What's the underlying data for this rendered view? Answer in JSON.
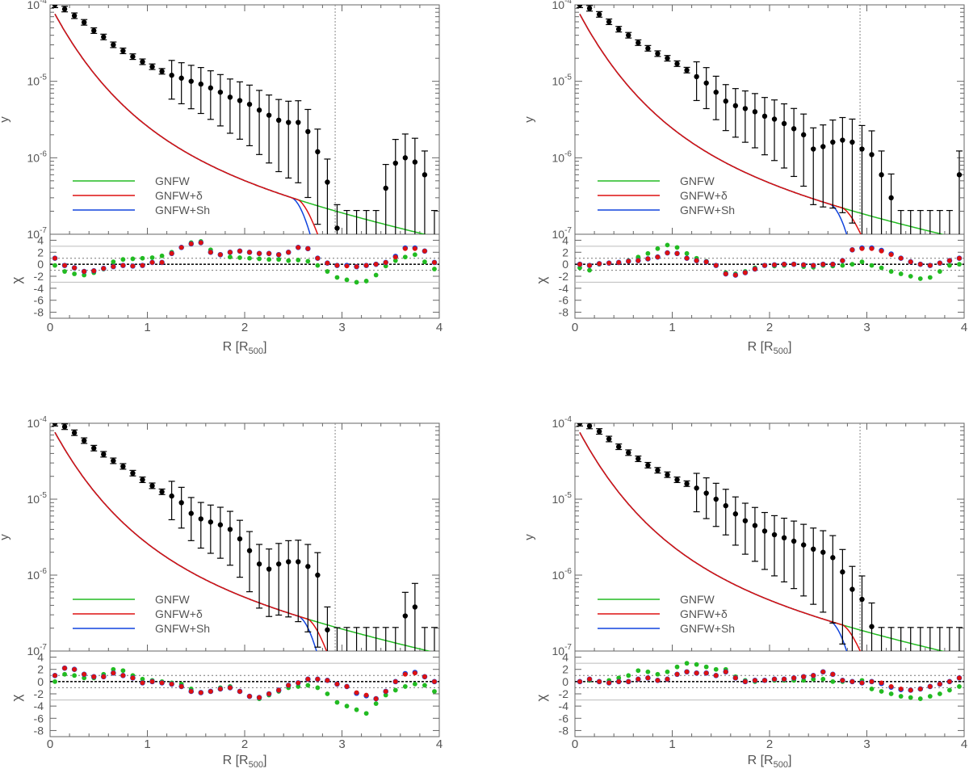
{
  "legend": {
    "position": "lower-left",
    "entries": [
      {
        "label": "GNFW",
        "color": "#22bb22"
      },
      {
        "label": "GNFW+δ",
        "color": "#dd1111"
      },
      {
        "label": "GNFW+Sh",
        "color": "#1144dd"
      }
    ]
  },
  "axes": {
    "xlabel_main": "R [R",
    "xlabel_sub": "500",
    "xlabel_close": "]",
    "ylabel_top": "y",
    "ylabel_bottom": "χ",
    "xlim": [
      0,
      4
    ],
    "xticks": [
      "0",
      "1",
      "2",
      "3",
      "4"
    ],
    "ylim_top": [
      1e-07,
      0.0001
    ],
    "log_y_top": true,
    "yticks_top": [
      {
        "base": "10",
        "exp": "-4"
      },
      {
        "base": "10",
        "exp": "-5"
      },
      {
        "base": "10",
        "exp": "-6"
      },
      {
        "base": "10",
        "exp": "-7"
      }
    ],
    "ylim_bottom": [
      -9,
      5
    ],
    "yticks_bottom": [
      "4",
      "2",
      "0",
      "-2",
      "-4",
      "-6",
      "-8"
    ],
    "vline_x": 2.93,
    "residual_reference_lines": [
      3,
      1,
      0,
      -1,
      -3
    ]
  },
  "chart_data": [
    {
      "type": "line",
      "panel": "top-left",
      "data_points": {
        "x": [
          0.05,
          0.15,
          0.25,
          0.35,
          0.45,
          0.55,
          0.65,
          0.75,
          0.85,
          0.95,
          1.05,
          1.15,
          1.25,
          1.35,
          1.45,
          1.55,
          1.65,
          1.75,
          1.85,
          1.95,
          2.05,
          2.15,
          2.25,
          2.35,
          2.45,
          2.55,
          2.65,
          2.75,
          2.85,
          2.95,
          3.05,
          3.15,
          3.25,
          3.35,
          3.45,
          3.55,
          3.65,
          3.75,
          3.85,
          3.95
        ],
        "y": [
          0.0001,
          8.8e-05,
          7.2e-05,
          5.9e-05,
          4.6e-05,
          3.8e-05,
          3e-05,
          2.5e-05,
          2.1e-05,
          1.8e-05,
          1.55e-05,
          1.35e-05,
          1.2e-05,
          1.1e-05,
          1e-05,
          9.2e-06,
          8.2e-06,
          7.2e-06,
          6.2e-06,
          5.6e-06,
          5e-06,
          4.2e-06,
          3.6e-06,
          3.1e-06,
          2.9e-06,
          2.9e-06,
          2.2e-06,
          1.2e-06,
          4.8e-07,
          1.2e-07,
          1e-07,
          1e-07,
          1e-07,
          1e-07,
          4e-07,
          8.5e-07,
          1e-06,
          8.8e-07,
          6e-07,
          1e-07
        ]
      },
      "series": [
        {
          "name": "GNFW",
          "fit": "gnfw",
          "k1": 1.95,
          "k2": 0.8
        },
        {
          "name": "GNFW+δ",
          "fit": "delta",
          "k1": 1.95,
          "k2": 0.8,
          "cut": 2.55,
          "cutw": 0.22,
          "cutp": 1.6
        },
        {
          "name": "GNFW+Sh",
          "fit": "shock",
          "k1": 1.95,
          "k2": 0.8,
          "cut": 2.48,
          "cutw": 0.2,
          "cutp": 1.9
        }
      ],
      "residuals": {
        "green": [
          -0.2,
          -1.2,
          -1.6,
          -1.8,
          -1.4,
          -0.8,
          0.4,
          0.8,
          0.9,
          1.0,
          1.1,
          1.4,
          2.0,
          2.8,
          3.6,
          3.8,
          2.4,
          1.6,
          1.2,
          1.1,
          1.0,
          0.9,
          0.8,
          0.8,
          0.6,
          0.7,
          0.5,
          -0.2,
          -1.2,
          -2.2,
          -2.6,
          -3.0,
          -2.8,
          -1.8,
          -0.3,
          0.6,
          1.2,
          1.6,
          0.4,
          -0.8
        ],
        "red": [
          1.0,
          -0.2,
          -0.6,
          -1.2,
          -1.1,
          -0.7,
          -0.4,
          -0.2,
          -0.3,
          -0.2,
          0.3,
          0.3,
          1.8,
          2.8,
          3.4,
          3.6,
          2.0,
          1.6,
          2.0,
          2.2,
          2.0,
          1.8,
          1.8,
          1.6,
          2.0,
          2.8,
          2.6,
          1.0,
          0.2,
          -0.2,
          -0.3,
          -0.4,
          -0.2,
          0.0,
          0.3,
          1.2,
          2.6,
          2.6,
          2.2,
          0.3
        ],
        "blue": [
          1.0,
          -0.2,
          -0.6,
          -1.2,
          -1.1,
          -0.7,
          -0.4,
          -0.2,
          -0.3,
          -0.2,
          0.3,
          0.3,
          1.8,
          2.8,
          3.4,
          3.6,
          2.0,
          1.6,
          2.0,
          2.2,
          2.0,
          1.8,
          1.8,
          1.6,
          2.0,
          2.8,
          2.6,
          1.0,
          0.2,
          -0.2,
          -0.2,
          -0.4,
          -0.2,
          0.0,
          0.3,
          1.3,
          2.7,
          2.7,
          2.2,
          0.3
        ]
      }
    },
    {
      "type": "line",
      "panel": "top-right",
      "data_points": {
        "x": [
          0.05,
          0.15,
          0.25,
          0.35,
          0.45,
          0.55,
          0.65,
          0.75,
          0.85,
          0.95,
          1.05,
          1.15,
          1.25,
          1.35,
          1.45,
          1.55,
          1.65,
          1.75,
          1.85,
          1.95,
          2.05,
          2.15,
          2.25,
          2.35,
          2.45,
          2.55,
          2.65,
          2.75,
          2.85,
          2.95,
          3.05,
          3.15,
          3.25,
          3.35,
          3.45,
          3.55,
          3.65,
          3.75,
          3.85,
          3.95
        ],
        "y": [
          0.0001,
          9e-05,
          7.5e-05,
          6e-05,
          4.8e-05,
          4e-05,
          3.2e-05,
          2.7e-05,
          2.3e-05,
          2e-05,
          1.7e-05,
          1.4e-05,
          1.15e-05,
          9.5e-06,
          7.2e-06,
          5.5e-06,
          4.8e-06,
          4.4e-06,
          4e-06,
          3.5e-06,
          3.2e-06,
          2.8e-06,
          2.4e-06,
          2e-06,
          1.3e-06,
          1.4e-06,
          1.6e-06,
          1.7e-06,
          1.6e-06,
          1.3e-06,
          1.1e-06,
          6e-07,
          3e-07,
          1e-07,
          1e-07,
          1e-07,
          1e-07,
          1e-07,
          1e-07,
          6e-07
        ]
      },
      "series": [
        {
          "name": "GNFW",
          "fit": "gnfw",
          "k1": 2.0,
          "k2": 0.78
        },
        {
          "name": "GNFW+δ",
          "fit": "delta",
          "k1": 2.0,
          "k2": 0.78,
          "cut": 2.75,
          "cutw": 0.25,
          "cutp": 1.6
        },
        {
          "name": "GNFW+Sh",
          "fit": "shock",
          "k1": 2.0,
          "k2": 0.78,
          "cut": 2.62,
          "cutw": 0.2,
          "cutp": 1.9
        }
      ],
      "residuals": {
        "green": [
          -0.6,
          -1.0,
          0.0,
          0.2,
          0.3,
          0.6,
          1.2,
          1.8,
          2.6,
          3.2,
          2.8,
          1.8,
          1.0,
          0.5,
          -0.2,
          -1.4,
          -1.6,
          -1.2,
          -0.6,
          -0.2,
          -0.3,
          -0.2,
          0.0,
          -0.4,
          -0.5,
          -0.2,
          -0.3,
          -0.2,
          0.0,
          0.4,
          -0.2,
          -0.6,
          -1.2,
          -1.6,
          -2.0,
          -2.4,
          -2.2,
          -1.2,
          -0.2,
          0.0
        ],
        "red": [
          0.0,
          -0.2,
          0.1,
          0.2,
          0.3,
          0.5,
          0.6,
          0.9,
          1.2,
          1.9,
          1.8,
          1.0,
          0.6,
          0.4,
          -0.2,
          -1.6,
          -1.8,
          -1.4,
          -0.8,
          -0.2,
          -0.1,
          0.0,
          0.0,
          -0.1,
          -0.2,
          0.0,
          0.0,
          0.6,
          2.4,
          2.6,
          2.6,
          2.2,
          1.6,
          1.0,
          0.4,
          0.0,
          -0.2,
          0.2,
          0.6,
          1.0
        ],
        "blue": [
          0.0,
          -0.2,
          0.1,
          0.2,
          0.3,
          0.5,
          0.6,
          0.9,
          1.2,
          1.9,
          1.8,
          1.0,
          0.6,
          0.4,
          -0.2,
          -1.6,
          -1.8,
          -1.4,
          -0.8,
          -0.2,
          -0.1,
          0.0,
          0.0,
          -0.1,
          -0.2,
          0.0,
          0.0,
          0.6,
          2.4,
          2.7,
          2.7,
          2.3,
          1.7,
          1.0,
          0.4,
          0.0,
          -0.2,
          0.2,
          0.6,
          1.0
        ]
      }
    },
    {
      "type": "line",
      "panel": "bottom-left",
      "data_points": {
        "x": [
          0.05,
          0.15,
          0.25,
          0.35,
          0.45,
          0.55,
          0.65,
          0.75,
          0.85,
          0.95,
          1.05,
          1.15,
          1.25,
          1.35,
          1.45,
          1.55,
          1.65,
          1.75,
          1.85,
          1.95,
          2.05,
          2.15,
          2.25,
          2.35,
          2.45,
          2.55,
          2.65,
          2.75,
          2.85,
          2.95,
          3.05,
          3.15,
          3.25,
          3.35,
          3.45,
          3.55,
          3.65,
          3.75,
          3.85,
          3.95
        ],
        "y": [
          0.0001,
          9e-05,
          7.5e-05,
          5.9e-05,
          4.7e-05,
          3.9e-05,
          3.2e-05,
          2.7e-05,
          2.2e-05,
          1.8e-05,
          1.5e-05,
          1.25e-05,
          1.1e-05,
          9e-06,
          6.5e-06,
          5.5e-06,
          5e-06,
          4.6e-06,
          4e-06,
          3e-06,
          2.1e-06,
          1.4e-06,
          1.2e-06,
          1.4e-06,
          1.5e-06,
          1.5e-06,
          1.3e-06,
          1e-06,
          1.9e-07,
          1e-07,
          1e-07,
          1e-07,
          1e-07,
          1e-07,
          1e-07,
          1e-07,
          2.9e-07,
          3.8e-07,
          1e-07,
          1e-07
        ]
      },
      "series": [
        {
          "name": "GNFW",
          "fit": "gnfw",
          "k1": 1.95,
          "k2": 0.79
        },
        {
          "name": "GNFW+δ",
          "fit": "delta",
          "k1": 1.95,
          "k2": 0.79,
          "cut": 2.65,
          "cutw": 0.22,
          "cutp": 1.6
        },
        {
          "name": "GNFW+Sh",
          "fit": "shock",
          "k1": 1.95,
          "k2": 0.79,
          "cut": 2.55,
          "cutw": 0.2,
          "cutp": 1.9
        }
      ],
      "residuals": {
        "green": [
          0.0,
          1.2,
          1.0,
          0.6,
          0.6,
          1.2,
          2.0,
          1.8,
          1.0,
          0.4,
          0.2,
          0.0,
          -0.2,
          -0.4,
          -1.2,
          -1.8,
          -1.6,
          -1.0,
          -0.8,
          -1.6,
          -2.4,
          -2.8,
          -2.2,
          -1.6,
          -1.0,
          -0.8,
          -0.6,
          -1.0,
          -2.0,
          -3.4,
          -4.0,
          -4.6,
          -5.2,
          -3.6,
          -2.2,
          -1.4,
          -0.8,
          -0.4,
          -0.6,
          -1.6
        ],
        "red": [
          1.0,
          2.2,
          2.0,
          1.2,
          0.8,
          0.8,
          1.4,
          1.0,
          0.6,
          -0.2,
          0.0,
          -0.2,
          -0.4,
          -0.8,
          -1.6,
          -1.8,
          -1.6,
          -1.2,
          -1.0,
          -1.6,
          -2.4,
          -2.6,
          -2.0,
          -1.4,
          -0.6,
          -0.2,
          0.4,
          0.4,
          0.2,
          -0.4,
          -0.8,
          -1.8,
          -2.2,
          -2.8,
          -1.6,
          0.0,
          1.2,
          1.4,
          0.8,
          0.0
        ],
        "blue": [
          1.0,
          2.2,
          2.0,
          1.2,
          0.8,
          0.8,
          1.4,
          1.0,
          0.6,
          -0.2,
          0.0,
          -0.2,
          -0.4,
          -0.8,
          -1.6,
          -1.8,
          -1.6,
          -1.2,
          -1.0,
          -1.6,
          -2.4,
          -2.6,
          -2.0,
          -1.4,
          -0.6,
          -0.2,
          0.4,
          0.4,
          0.2,
          -0.4,
          -0.8,
          -1.9,
          -2.3,
          -2.8,
          -1.6,
          0.0,
          1.3,
          1.5,
          0.8,
          0.0
        ]
      }
    },
    {
      "type": "line",
      "panel": "bottom-right",
      "data_points": {
        "x": [
          0.05,
          0.15,
          0.25,
          0.35,
          0.45,
          0.55,
          0.65,
          0.75,
          0.85,
          0.95,
          1.05,
          1.15,
          1.25,
          1.35,
          1.45,
          1.55,
          1.65,
          1.75,
          1.85,
          1.95,
          2.05,
          2.15,
          2.25,
          2.35,
          2.45,
          2.55,
          2.65,
          2.75,
          2.85,
          2.95,
          3.05,
          3.15,
          3.25,
          3.35,
          3.45,
          3.55,
          3.65,
          3.75,
          3.85,
          3.95
        ],
        "y": [
          0.0001,
          9.2e-05,
          7.8e-05,
          6.2e-05,
          4.9e-05,
          4.1e-05,
          3.4e-05,
          2.8e-05,
          2.4e-05,
          2.1e-05,
          1.8e-05,
          1.6e-05,
          1.4e-05,
          1.2e-05,
          1e-05,
          8.2e-06,
          6.4e-06,
          5.2e-06,
          4.5e-06,
          3.8e-06,
          3.4e-06,
          3.1e-06,
          2.8e-06,
          2.5e-06,
          2.2e-06,
          2e-06,
          1.7e-06,
          1.1e-06,
          6.5e-07,
          4.8e-07,
          2.1e-07,
          1e-07,
          1e-07,
          1e-07,
          1e-07,
          1e-07,
          1e-07,
          1e-07,
          1e-07,
          1e-07
        ]
      },
      "series": [
        {
          "name": "GNFW",
          "fit": "gnfw",
          "k1": 2.0,
          "k2": 0.78
        },
        {
          "name": "GNFW+δ",
          "fit": "delta",
          "k1": 2.0,
          "k2": 0.78,
          "cut": 2.75,
          "cutw": 0.24,
          "cutp": 1.6
        },
        {
          "name": "GNFW+Sh",
          "fit": "shock",
          "k1": 2.0,
          "k2": 0.78,
          "cut": 2.62,
          "cutw": 0.2,
          "cutp": 1.9
        }
      ],
      "residuals": {
        "green": [
          0.0,
          0.2,
          0.0,
          0.2,
          0.6,
          1.0,
          1.8,
          1.6,
          1.2,
          1.6,
          2.4,
          3.0,
          2.8,
          2.4,
          2.0,
          2.0,
          0.8,
          0.2,
          0.0,
          0.2,
          0.2,
          0.2,
          0.2,
          0.2,
          0.4,
          0.4,
          0.0,
          0.0,
          0.0,
          0.2,
          -1.2,
          -1.6,
          -2.0,
          -2.4,
          -2.6,
          -2.8,
          -2.4,
          -2.0,
          -1.4,
          -0.8
        ],
        "red": [
          0.0,
          0.4,
          0.0,
          -0.2,
          0.0,
          0.0,
          0.4,
          0.6,
          0.2,
          0.4,
          1.2,
          1.6,
          1.4,
          1.4,
          1.0,
          1.6,
          0.6,
          0.0,
          0.2,
          0.2,
          0.4,
          0.4,
          0.6,
          0.8,
          1.0,
          1.6,
          1.2,
          0.2,
          0.0,
          -0.2,
          0.0,
          -0.2,
          -0.8,
          -1.2,
          -1.4,
          -1.2,
          -0.8,
          -0.4,
          0.0,
          0.6
        ],
        "blue": [
          0.0,
          0.4,
          0.0,
          -0.2,
          0.0,
          0.0,
          0.4,
          0.6,
          0.2,
          0.4,
          1.2,
          1.6,
          1.4,
          1.4,
          1.0,
          1.6,
          0.6,
          0.0,
          0.2,
          0.2,
          0.4,
          0.4,
          0.6,
          0.8,
          1.0,
          1.6,
          1.2,
          0.2,
          0.0,
          -0.2,
          0.0,
          -0.3,
          -0.9,
          -1.3,
          -1.4,
          -1.2,
          -0.8,
          -0.4,
          0.0,
          0.6
        ]
      }
    }
  ]
}
